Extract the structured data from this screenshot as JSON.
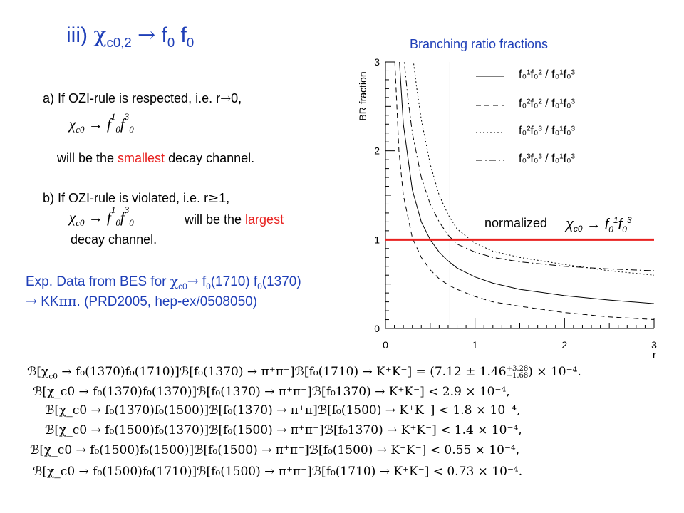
{
  "slide": {
    "title": {
      "prefix": "iii) ",
      "chi": "χ",
      "chi_sub": "c0,2",
      "arrow": "→",
      "f1": "f",
      "f1_sub": "0",
      "f2": "f",
      "f2_sub": "0"
    },
    "item_a": {
      "text": "a) If OZI-rule is respected, i.e. r",
      "arrow": "→",
      "tail": "0,",
      "formula": "χ c0 → f₀¹ f₀³",
      "line2_before": "will be the ",
      "highlight": "smallest",
      "line2_after": " decay channel."
    },
    "item_b": {
      "text": "b) If OZI-rule is violated, i.e. r",
      "ge": "≥",
      "tail": "1,",
      "formula": "χ c0 → f₀¹ f₀³",
      "line2_before": "will be the ",
      "highlight": "largest",
      "line3": "decay channel."
    },
    "exp": {
      "line1_a": "Exp. Data from BES for ",
      "chi": "χ",
      "chi_sub": "c0",
      "arrow": "→",
      "line1_b": " f",
      "f_sub1": "0",
      "line1_c": "(1710) f",
      "f_sub2": "0",
      "line1_d": "(1370)",
      "line2_arrow": "→",
      "line2_a": " KK",
      "line2_pipi": "ππ",
      "line2_b": ".    (PRD2005, hep-ex/0508050)"
    },
    "results": [
      {
        "lhs": "ℬ[χ",
        "sub": "c0",
        "mid": " → f₀(1370)f₀(1710)]ℬ[f₀(1370) → π⁺π⁻]ℬ[f₀(1710) → K⁺K⁻] = (7.12 ± 1.46",
        "sup": "+3.28",
        "sub2": "−1.68",
        "end": ") × 10⁻⁴."
      },
      {
        "text": "ℬ[χ_c0 → f₀(1370)f₀(1370)]ℬ[f₀(1370) → π⁺π⁻]ℬ[f₀1370) → K⁺K⁻] < 2.9 × 10⁻⁴,"
      },
      {
        "text": "ℬ[χ_c0 → f₀(1370)f₀(1500)]ℬ[f₀(1370) → π⁺π]ℬ[f₀(1500) → K⁺K⁻] < 1.8 × 10⁻⁴,"
      },
      {
        "text": "ℬ[χ_c0 → f₀(1500)f₀(1370)]ℬ[f₀(1500) → π⁺π⁻]ℬ[f₀1370) → K⁺K⁻] < 1.4 × 10⁻⁴,"
      },
      {
        "text": "ℬ[χ_c0 → f₀(1500)f₀(1500)]ℬ[f₀(1500) → π⁺π⁻]ℬ[f₀(1500) → K⁺K⁻] < 0.55 × 10⁻⁴,"
      },
      {
        "text": "ℬ[χ_c0 → f₀(1500)f₀(1710)]ℬ[f₀(1500) → π⁺π⁻]ℬ[f₀(1710) → K⁺K⁻] < 0.73 × 10⁻⁴."
      }
    ]
  },
  "chart_data": {
    "type": "line",
    "title": "Branching ratio fractions",
    "xlabel": "r",
    "ylabel": "BR fraction",
    "xlim": [
      0,
      3
    ],
    "ylim": [
      0,
      3
    ],
    "xticks": [
      "0",
      "1",
      "2",
      "3"
    ],
    "yticks": [
      "0",
      "1",
      "2",
      "3"
    ],
    "grid": false,
    "legend_position": "top-right",
    "colors": {
      "title": "#1f3fb8",
      "reference": "#e8211f",
      "curves": "#000000"
    },
    "reference_line": {
      "y": 1,
      "label": "normalized",
      "formula": "χ c0 → f₀¹ f₀³"
    },
    "marker_line": {
      "x": 0.72
    },
    "series": [
      {
        "name": "f₀¹f₀² / f₀¹f₀³",
        "style": "solid",
        "x": [
          0.15,
          0.2,
          0.3,
          0.4,
          0.5,
          0.6,
          0.7,
          0.8,
          1.0,
          1.2,
          1.5,
          2.0,
          2.5,
          3.0
        ],
        "y": [
          3.1,
          2.3,
          1.56,
          1.2,
          1.0,
          0.86,
          0.76,
          0.68,
          0.58,
          0.51,
          0.44,
          0.37,
          0.32,
          0.28
        ]
      },
      {
        "name": "f₀²f₀² / f₀¹f₀³",
        "style": "dashed",
        "x": [
          0.1,
          0.15,
          0.2,
          0.3,
          0.4,
          0.5,
          0.6,
          0.7,
          0.8,
          1.0,
          1.2,
          1.5,
          2.0,
          2.5,
          3.0
        ],
        "y": [
          3.1,
          2.0,
          1.5,
          1.02,
          0.8,
          0.66,
          0.56,
          0.49,
          0.44,
          0.36,
          0.3,
          0.25,
          0.18,
          0.13,
          0.1
        ]
      },
      {
        "name": "f₀²f₀³ / f₀¹f₀³",
        "style": "dotted",
        "x": [
          0.3,
          0.35,
          0.4,
          0.5,
          0.6,
          0.7,
          0.8,
          1.0,
          1.2,
          1.5,
          2.0,
          2.5,
          3.0
        ],
        "y": [
          3.1,
          2.7,
          2.35,
          1.85,
          1.5,
          1.28,
          1.12,
          0.96,
          0.87,
          0.8,
          0.72,
          0.65,
          0.6
        ]
      },
      {
        "name": "f₀³f₀³ / f₀¹f₀³",
        "style": "dashdot",
        "x": [
          0.2,
          0.25,
          0.3,
          0.4,
          0.5,
          0.6,
          0.7,
          0.8,
          1.0,
          1.2,
          1.5,
          2.0,
          2.5,
          3.0
        ],
        "y": [
          3.1,
          2.6,
          2.2,
          1.7,
          1.4,
          1.2,
          1.05,
          0.95,
          0.86,
          0.8,
          0.75,
          0.7,
          0.67,
          0.65
        ]
      }
    ]
  }
}
